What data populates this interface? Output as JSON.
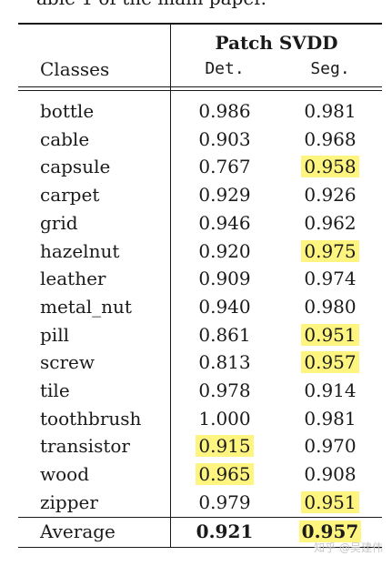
{
  "caption_fragment": "able 1 of the main paper.",
  "header": {
    "group_label": "Patch SVDD",
    "classes_label": "Classes",
    "det_label": "Det.",
    "seg_label": "Seg."
  },
  "rows": [
    {
      "cls": "bottle",
      "det": "0.986",
      "seg": "0.981"
    },
    {
      "cls": "cable",
      "det": "0.903",
      "seg": "0.968"
    },
    {
      "cls": "capsule",
      "det": "0.767",
      "seg": "0.958"
    },
    {
      "cls": "carpet",
      "det": "0.929",
      "seg": "0.926"
    },
    {
      "cls": "grid",
      "det": "0.946",
      "seg": "0.962"
    },
    {
      "cls": "hazelnut",
      "det": "0.920",
      "seg": "0.975"
    },
    {
      "cls": "leather",
      "det": "0.909",
      "seg": "0.974"
    },
    {
      "cls": "metal_nut",
      "det": "0.940",
      "seg": "0.980"
    },
    {
      "cls": "pill",
      "det": "0.861",
      "seg": "0.951"
    },
    {
      "cls": "screw",
      "det": "0.813",
      "seg": "0.957"
    },
    {
      "cls": "tile",
      "det": "0.978",
      "seg": "0.914"
    },
    {
      "cls": "toothbrush",
      "det": "1.000",
      "seg": "0.981"
    },
    {
      "cls": "transistor",
      "det": "0.915",
      "seg": "0.970"
    },
    {
      "cls": "wood",
      "det": "0.965",
      "seg": "0.908"
    },
    {
      "cls": "zipper",
      "det": "0.979",
      "seg": "0.951"
    }
  ],
  "average": {
    "label": "Average",
    "det": "0.921",
    "seg": "0.957"
  },
  "highlights": {
    "color": "#fdf57f",
    "det_highlighted": [
      "transistor",
      "wood"
    ],
    "seg_highlighted": [
      "capsule",
      "hazelnut",
      "pill",
      "screw",
      "zipper",
      "Average"
    ]
  },
  "watermark": "知乎 @吴建伟"
}
